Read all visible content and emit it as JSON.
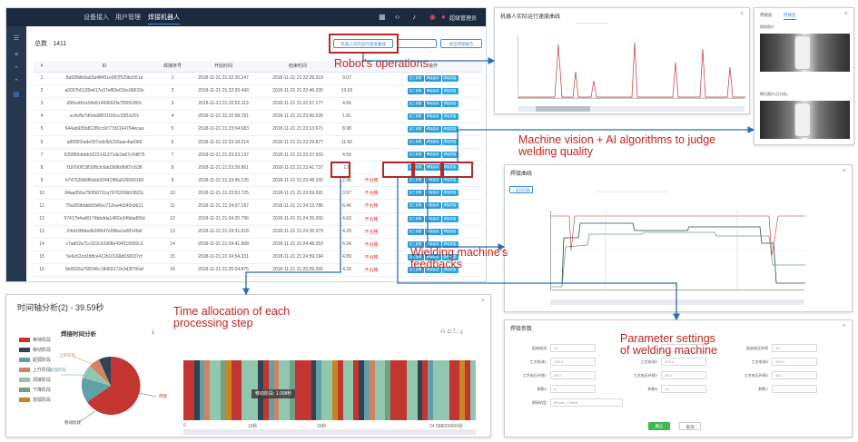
{
  "main_app": {
    "nav": [
      "设备接入",
      "用户管理",
      "焊接机器人"
    ],
    "user_label": "超级管理员",
    "total_label": "总数 · 1411",
    "buttons": [
      "机器人实际运行速度曲线",
      "",
      "导出焊接报告"
    ],
    "table_headers": [
      "#",
      "ID",
      "焊接序号",
      "开始时间",
      "结束时间",
      "",
      "",
      "操作"
    ],
    "op_labels": [
      "加工参数",
      "焊接曲线",
      "焊接质量"
    ],
    "rows": [
      {
        "n": "1",
        "id": "8a939db9ab3a48451e587f529bc651a",
        "seq": "1",
        "start": "2018-11-21 21:22:20.247",
        "end": "2018-11-21 21:22:29.319",
        "val": "9.07",
        "status": ""
      },
      {
        "n": "2",
        "id": "a0037b5128a417e37ef83e01bc06633e",
        "seq": "2",
        "start": "2018-11-21 21:22:33.443",
        "end": "2018-11-21 21:22:46.335",
        "val": "13.02",
        "status": ""
      },
      {
        "n": "3",
        "id": "d96cefb1e94a51493662fa7f0091f82c",
        "seq": "3",
        "start": "2018-11-21 21:22:52.113",
        "end": "2018-11-21 21:22:57.177",
        "val": "4.66",
        "status": ""
      },
      {
        "n": "4",
        "id": "ec4cffa7d0da9801f166cc33f1b201",
        "seq": "4",
        "start": "2018-11-21 21:22:58.781",
        "end": "2018-11-21 21:23:00.639",
        "val": "1.81",
        "status": ""
      },
      {
        "n": "5",
        "id": "644ab935b812f0cc9c77d3164764ecaa",
        "seq": "5",
        "start": "2018-11-21 21:23:04.683",
        "end": "2018-11-21 21:23:13.671",
        "val": "8.98",
        "status": ""
      },
      {
        "n": "6",
        "id": "a8f3902ade057edcfb5293aac4ad366",
        "seq": "6",
        "start": "2018-11-21 21:23:18.214",
        "end": "2018-11-21 21:23:29.877",
        "val": "11.66",
        "status": ""
      },
      {
        "n": "7",
        "id": "635850debb1622141371de3a87c54875",
        "seq": "7",
        "start": "2018-11-21 21:23:33.137",
        "end": "2018-11-21 21:23:37.933",
        "val": "4.59",
        "status": ""
      },
      {
        "n": "8",
        "id": "f197b0f13810fb3c6dd369b9bf07c638",
        "seq": "8",
        "start": "2018-11-21 21:23:39.861",
        "end": "2018-11-21 21:23:41.737",
        "val": "1.9",
        "status": ""
      },
      {
        "n": "9",
        "id": "b747530b6f6deb32441f86a626560168",
        "seq": "9",
        "start": "2018-11-21 21:23:45.125",
        "end": "2018-11-21 21:23:48.100",
        "val": "2.96",
        "status": "不合格"
      },
      {
        "n": "10",
        "id": "84aa056a750f90731a7970200b53822c",
        "seq": "10",
        "start": "2018-11-21 21:23:53.725",
        "end": "2018-11-21 21:23:59.691",
        "val": "3.97",
        "status": "不合格"
      },
      {
        "n": "11",
        "id": "75a309bbbb55d0ec712ea4d340cbb11",
        "seq": "11",
        "start": "2018-11-21 21:24:07.197",
        "end": "2018-11-21 21:24:13.786",
        "val": "6.46",
        "status": "不合格"
      },
      {
        "n": "12",
        "id": "57417b4ad0174bbdda1482a349dad55d",
        "seq": "12",
        "start": "2018-11-21 21:24:20.796",
        "end": "2018-11-21 21:24:25.430",
        "val": "4.63",
        "status": "不合格"
      },
      {
        "n": "13",
        "id": "24dc04bbedb20f647e99ba1e0814fa0",
        "seq": "13",
        "start": "2018-11-21 21:24:31.618",
        "end": "2018-11-21 21:24:35.979",
        "val": "4.29",
        "status": "不合格"
      },
      {
        "n": "14",
        "id": "c7ad02a71c223c92d08e434519992c3",
        "seq": "14",
        "start": "2018-11-21 21:24:41.908",
        "end": "2018-11-21 21:24:48.253",
        "val": "6.34",
        "status": "不合格"
      },
      {
        "n": "15",
        "id": "5e6c63cd1bffce412b10168d030037cf",
        "seq": "15",
        "start": "2018-11-21 21:24:54.331",
        "end": "2018-11-21 21:24:59.194",
        "val": "4.89",
        "status": "不合格"
      },
      {
        "n": "16",
        "id": "9e9926a768246c18d69172e3d3f790af",
        "seq": "16",
        "start": "2018-11-21 21:25:04.875",
        "end": "2018-11-21 21:25:09.265",
        "val": "4.39",
        "status": "不合格"
      }
    ]
  },
  "robot_window": {
    "title": "机器人实际运行速度曲线"
  },
  "vision_window": {
    "tabs": [
      "焊接前",
      "焊接后"
    ],
    "labels": [
      "焊前图片",
      "焊后图片(已分析)"
    ]
  },
  "curve_window": {
    "title": "焊接曲线",
    "back_label": "< 返回列表"
  },
  "param_window": {
    "title": "焊接参数",
    "fields": [
      {
        "label": "起始电流",
        "value": "11"
      },
      {
        "label": "",
        "value": ""
      },
      {
        "label": "起始电压补偿",
        "value": "13"
      },
      {
        "label": "工艺电流1",
        "value": "100.0"
      },
      {
        "label": "工艺电流2",
        "value": "100.0"
      },
      {
        "label": "工艺电流3",
        "value": "100.0"
      },
      {
        "label": "工艺电压补偿1",
        "value": "45.0"
      },
      {
        "label": "工艺电压补偿2",
        "value": "45.0"
      },
      {
        "label": "工艺电压补偿3",
        "value": "45.0"
      },
      {
        "label": "参数A",
        "value": "2"
      },
      {
        "label": "参数B",
        "value": "13"
      },
      {
        "label": "参数C",
        "value": ""
      },
      {
        "label": "焊接机型",
        "value": "iPhone_CMAA"
      }
    ],
    "ok_label": "确认",
    "cancel_label": "取消"
  },
  "time_window": {
    "title": "时间轴分析(2) - 39.59秒",
    "pie_title": "焊接时间分析",
    "legend": [
      {
        "label": "等待阶段",
        "color": "#c23531"
      },
      {
        "label": "移动阶段",
        "color": "#2f4554"
      },
      {
        "label": "起弧阶段",
        "color": "#61a0a8"
      },
      {
        "label": "上升阶段",
        "color": "#d48265"
      },
      {
        "label": "焊接阶段",
        "color": "#91c7ae"
      },
      {
        "label": "下降阶段",
        "color": "#749f83"
      },
      {
        "label": "熄弧阶段",
        "color": "#ca8622"
      }
    ],
    "pie_labels": [
      "起弧阶段",
      "上升阶段",
      "移动阶段",
      "焊接",
      "等待阶段"
    ],
    "tooltip": "移动阶段: 1.008秒",
    "axis_ticks": [
      "0",
      "10秒",
      "20秒",
      "24.588000000秒"
    ]
  },
  "annotations": {
    "robot": "Robot's operations",
    "vision": "Machine vision + AI algorithms to judge\nwelding quality",
    "feedback": "Wielding machine's\nfeedbacks",
    "time": "Time allocation of each\nprocessing step",
    "param": "Parameter settings\nof welding machine"
  },
  "colors": {
    "accent": "#3a8ee6",
    "highlight": "#b5292b",
    "annotation_text": "#c0261f",
    "arrow": "#2a6fb5"
  }
}
